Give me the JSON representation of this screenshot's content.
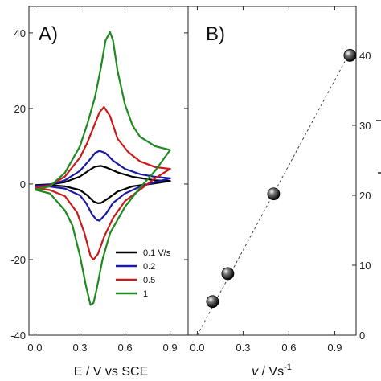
{
  "chart_data": [
    {
      "panel_label": "A)",
      "type": "line",
      "xlabel": "E / V vs SCE",
      "ylabel": "",
      "xlim": [
        -0.04,
        1.02
      ],
      "ylim": [
        -40,
        47
      ],
      "x_ticks": [
        0.0,
        0.3,
        0.6,
        0.9
      ],
      "x_tick_labels": [
        "0.0",
        "0.3",
        "0.6",
        "0.9"
      ],
      "y_ticks": [
        -40,
        -20,
        0,
        20,
        40
      ],
      "y_tick_labels": [
        "-40",
        "-20",
        "0",
        "20",
        "40"
      ],
      "legend_position": "bottom-right",
      "series": [
        {
          "name": "0.1 V/s",
          "color": "#000000",
          "x": [
            0.0,
            0.1,
            0.2,
            0.3,
            0.36,
            0.4,
            0.44,
            0.48,
            0.55,
            0.65,
            0.8,
            0.9,
            0.8,
            0.65,
            0.55,
            0.48,
            0.44,
            0.42,
            0.39,
            0.35,
            0.3,
            0.2,
            0.1,
            0.0
          ],
          "values": [
            -0.3,
            -0.1,
            0.5,
            2.0,
            3.6,
            4.6,
            4.8,
            4.3,
            3.1,
            1.9,
            1.0,
            0.8,
            0.2,
            -0.6,
            -2.0,
            -4.0,
            -5.0,
            -5.1,
            -4.6,
            -3.0,
            -1.6,
            -0.6,
            -0.3,
            -0.3
          ]
        },
        {
          "name": "0.2",
          "color": "#1a1aa6",
          "x": [
            0.0,
            0.1,
            0.2,
            0.3,
            0.36,
            0.4,
            0.43,
            0.47,
            0.52,
            0.6,
            0.7,
            0.8,
            0.9,
            0.8,
            0.7,
            0.6,
            0.52,
            0.47,
            0.43,
            0.41,
            0.38,
            0.34,
            0.3,
            0.2,
            0.1,
            0.0
          ],
          "values": [
            -0.5,
            -0.2,
            1.0,
            3.5,
            6.2,
            8.2,
            8.8,
            8.2,
            6.2,
            4.0,
            2.6,
            1.9,
            1.5,
            0.5,
            -0.7,
            -2.5,
            -5.0,
            -8.0,
            -9.7,
            -9.5,
            -8.0,
            -5.0,
            -3.0,
            -1.2,
            -0.7,
            -0.5
          ]
        },
        {
          "name": "0.5",
          "color": "#cc1a1a",
          "x": [
            0.0,
            0.1,
            0.2,
            0.3,
            0.35,
            0.4,
            0.43,
            0.46,
            0.5,
            0.55,
            0.62,
            0.7,
            0.8,
            0.9,
            0.8,
            0.7,
            0.6,
            0.52,
            0.46,
            0.42,
            0.39,
            0.37,
            0.33,
            0.28,
            0.2,
            0.1,
            0.0
          ],
          "values": [
            -1.0,
            -0.4,
            2.0,
            7.0,
            11.0,
            16.0,
            19.0,
            20.4,
            18.0,
            12.0,
            8.5,
            6.0,
            4.5,
            4.0,
            1.5,
            -1.5,
            -4.5,
            -9.0,
            -14.0,
            -18.5,
            -20.0,
            -19.0,
            -13.0,
            -7.5,
            -3.2,
            -1.6,
            -1.0
          ]
        },
        {
          "name": "1",
          "color": "#1f8a1f",
          "x": [
            0.0,
            0.1,
            0.2,
            0.3,
            0.35,
            0.4,
            0.44,
            0.47,
            0.5,
            0.52,
            0.55,
            0.6,
            0.65,
            0.7,
            0.8,
            0.9,
            0.8,
            0.7,
            0.6,
            0.5,
            0.45,
            0.41,
            0.39,
            0.37,
            0.34,
            0.3,
            0.25,
            0.2,
            0.1,
            0.0
          ],
          "values": [
            -1.5,
            -0.6,
            3.0,
            10.0,
            16.0,
            23.0,
            31.0,
            38.0,
            40.2,
            38.0,
            30.0,
            21.0,
            15.5,
            12.5,
            10.0,
            9.0,
            3.5,
            -1.0,
            -6.0,
            -13.0,
            -20.0,
            -28.0,
            -31.5,
            -32.0,
            -27.0,
            -19.0,
            -11.0,
            -7.0,
            -2.5,
            -1.5
          ]
        }
      ]
    },
    {
      "panel_label": "B)",
      "type": "scatter",
      "xlabel_italic": "v",
      "xlabel_rest": " / Vs",
      "xlabel_sup": "-1",
      "ylabel": "",
      "xlim": [
        -0.06,
        1.04
      ],
      "ylim": [
        0,
        47
      ],
      "x_ticks": [
        0.0,
        0.3,
        0.6,
        0.9
      ],
      "x_tick_labels": [
        "0.0",
        "0.3",
        "0.6",
        "0.9"
      ],
      "y_ticks": [
        0,
        10,
        20,
        30,
        40
      ],
      "y_tick_labels": [
        "0",
        "10",
        "20",
        "30",
        "40"
      ],
      "points": {
        "x": [
          0.1,
          0.2,
          0.5,
          1.0
        ],
        "values": [
          4.8,
          8.8,
          20.2,
          40.0
        ]
      },
      "fit_line": {
        "x": [
          0.0,
          1.0
        ],
        "values": [
          0.0,
          40.5
        ]
      }
    }
  ]
}
